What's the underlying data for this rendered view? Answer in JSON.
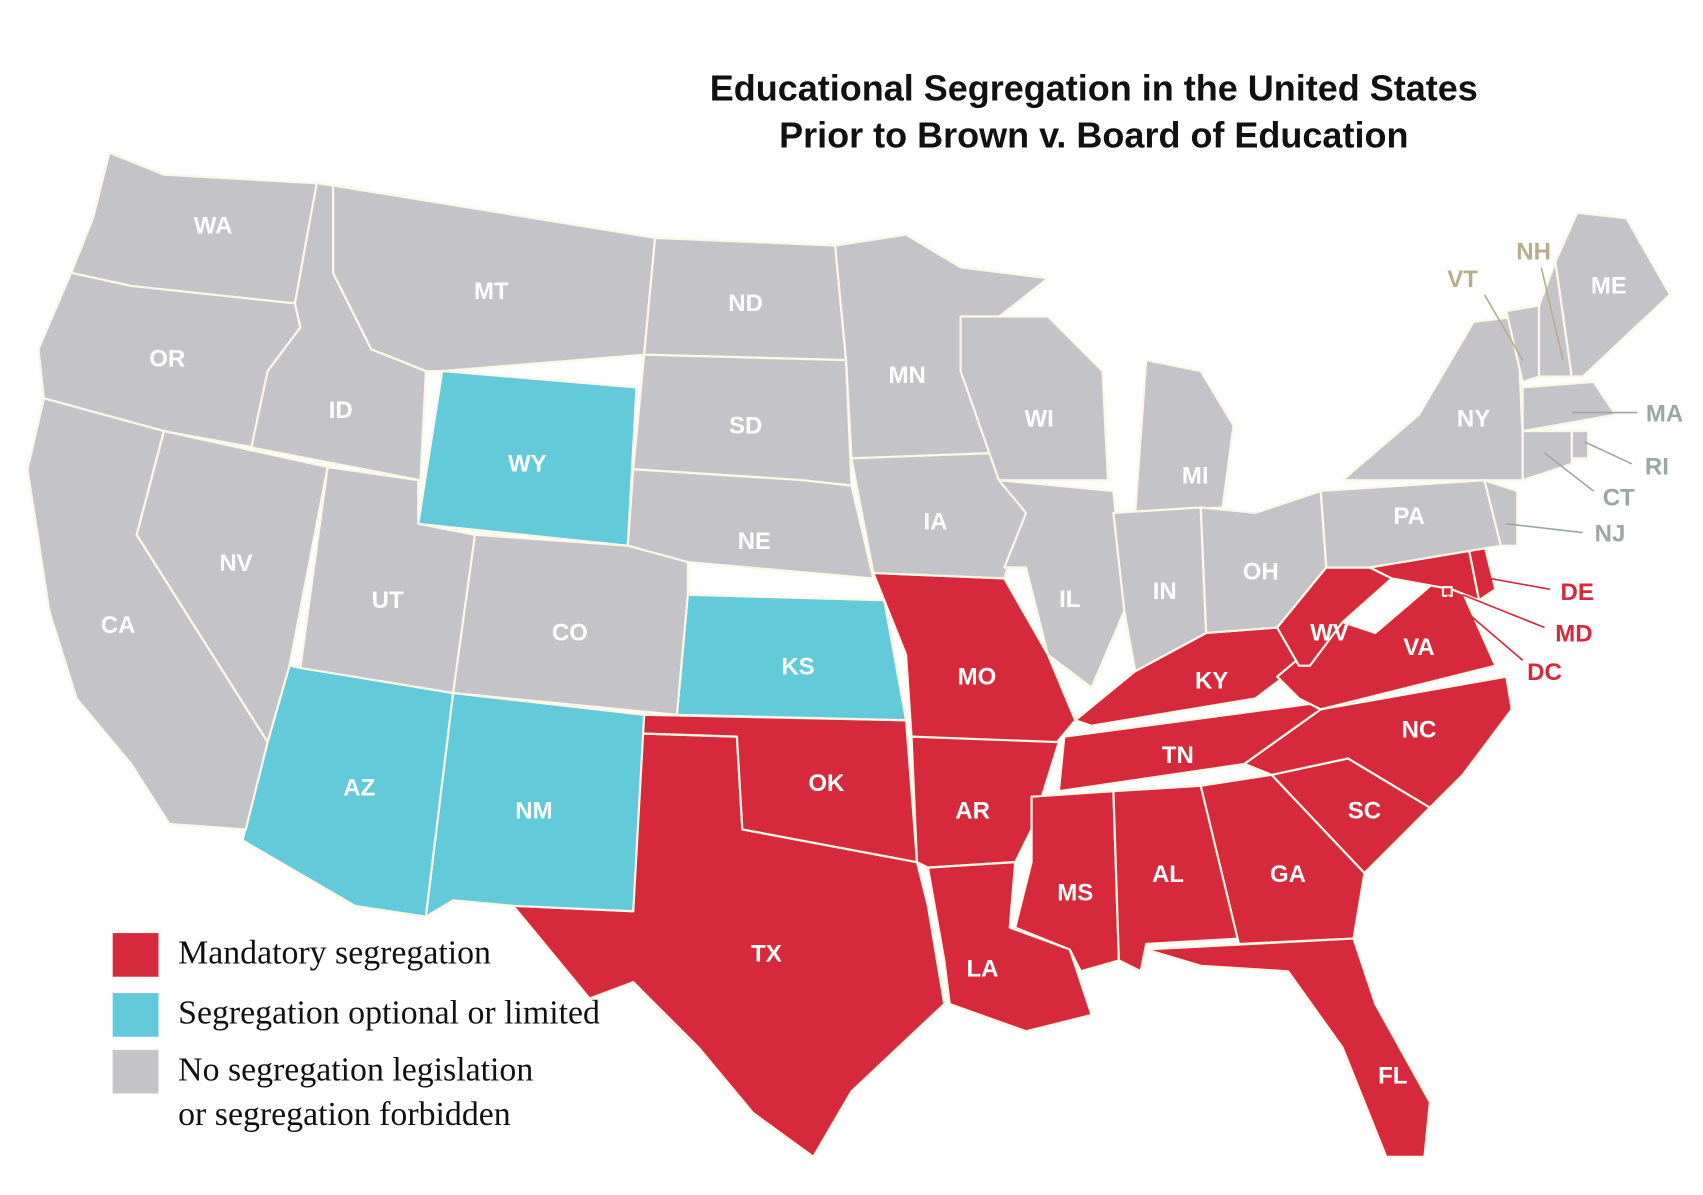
{
  "title": [
    "Educational Segregation in the United States",
    "Prior to Brown v. Board of Education"
  ],
  "legend": [
    {
      "label": [
        "Mandatory segregation"
      ],
      "color": "#d62a3c",
      "states": [
        "TX",
        "OK",
        "MO",
        "AR",
        "LA",
        "MS",
        "AL",
        "TN",
        "KY",
        "GA",
        "FL",
        "SC",
        "NC",
        "VA",
        "WV",
        "DE",
        "MD",
        "DC"
      ]
    },
    {
      "label": [
        "Segregation optional or limited"
      ],
      "color": "#62cad8",
      "states": [
        "WY",
        "KS",
        "AZ",
        "NM"
      ]
    },
    {
      "label": [
        "No segregation legislation",
        "or segregation forbidden"
      ],
      "color": "#c4c3c8",
      "states": [
        "WA",
        "OR",
        "CA",
        "ID",
        "NV",
        "MT",
        "UT",
        "ND",
        "SD",
        "NE",
        "CO",
        "MN",
        "IA",
        "WI",
        "IL",
        "MI",
        "IN",
        "OH",
        "PA",
        "NY",
        "NJ",
        "VT",
        "NH",
        "ME",
        "MA",
        "RI",
        "CT"
      ]
    }
  ]
}
